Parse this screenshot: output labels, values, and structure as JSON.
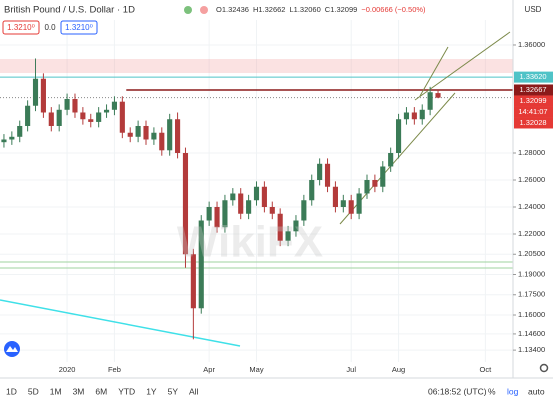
{
  "header": {
    "symbol": "British Pound / U.S. Dollar · 1D",
    "ohlc": [
      "O1.32436",
      "H1.32662",
      "L1.32060",
      "C1.32099",
      "−0.00666 (−0.50%)"
    ],
    "sell": "1.3210⁰",
    "spread": "0.0",
    "buy": "1.3210⁰"
  },
  "chart_data": {
    "type": "candlestick",
    "currency": "USD",
    "watermark": "WikiFX",
    "up_color": "#3b7b57",
    "down_color": "#b33b3b",
    "grid": true,
    "open": [
      1.288,
      1.29,
      1.292,
      1.3,
      1.315,
      1.335,
      1.31,
      1.3,
      1.312,
      1.32,
      1.31,
      1.305,
      1.303,
      1.31,
      1.312,
      1.318,
      1.295,
      1.292,
      1.3,
      1.29,
      1.295,
      1.282,
      1.305,
      1.28,
      1.205,
      1.165,
      1.23,
      1.24,
      1.225,
      1.245,
      1.25,
      1.235,
      1.245,
      1.255,
      1.24,
      1.235,
      1.215,
      1.222,
      1.23,
      1.245,
      1.26,
      1.272,
      1.255,
      1.24,
      1.245,
      1.235,
      1.25,
      1.26,
      1.255,
      1.27,
      1.28,
      1.305,
      1.31,
      1.305,
      1.312,
      1.32436
    ],
    "high": [
      1.294,
      1.296,
      1.304,
      1.319,
      1.35,
      1.339,
      1.314,
      1.316,
      1.324,
      1.324,
      1.314,
      1.309,
      1.314,
      1.316,
      1.322,
      1.322,
      1.299,
      1.304,
      1.304,
      1.299,
      1.299,
      1.309,
      1.31,
      1.284,
      1.209,
      1.234,
      1.244,
      1.244,
      1.249,
      1.254,
      1.254,
      1.249,
      1.259,
      1.259,
      1.244,
      1.239,
      1.226,
      1.234,
      1.249,
      1.264,
      1.276,
      1.276,
      1.259,
      1.249,
      1.249,
      1.254,
      1.264,
      1.264,
      1.274,
      1.284,
      1.309,
      1.314,
      1.314,
      1.316,
      1.329,
      1.32662
    ],
    "low": [
      1.284,
      1.286,
      1.288,
      1.296,
      1.311,
      1.306,
      1.296,
      1.296,
      1.308,
      1.306,
      1.301,
      1.299,
      1.299,
      1.306,
      1.308,
      1.291,
      1.288,
      1.288,
      1.286,
      1.286,
      1.278,
      1.278,
      1.276,
      1.195,
      1.142,
      1.161,
      1.226,
      1.221,
      1.221,
      1.241,
      1.231,
      1.231,
      1.241,
      1.236,
      1.231,
      1.211,
      1.211,
      1.218,
      1.226,
      1.241,
      1.256,
      1.251,
      1.236,
      1.236,
      1.231,
      1.231,
      1.246,
      1.251,
      1.251,
      1.266,
      1.276,
      1.301,
      1.301,
      1.301,
      1.308,
      1.3206
    ],
    "close": [
      1.29,
      1.292,
      1.3,
      1.315,
      1.335,
      1.31,
      1.3,
      1.312,
      1.32,
      1.31,
      1.305,
      1.303,
      1.31,
      1.312,
      1.318,
      1.295,
      1.292,
      1.3,
      1.29,
      1.295,
      1.282,
      1.305,
      1.28,
      1.205,
      1.165,
      1.23,
      1.24,
      1.225,
      1.245,
      1.25,
      1.235,
      1.245,
      1.255,
      1.24,
      1.235,
      1.215,
      1.222,
      1.23,
      1.245,
      1.26,
      1.272,
      1.255,
      1.24,
      1.245,
      1.235,
      1.25,
      1.26,
      1.255,
      1.27,
      1.28,
      1.305,
      1.31,
      1.305,
      1.312,
      1.325,
      1.32099
    ],
    "xlim": [
      -0.5,
      64.5
    ],
    "xticks": [
      {
        "value": 8,
        "label": "2020"
      },
      {
        "value": 14,
        "label": "Feb"
      },
      {
        "value": 26,
        "label": "Apr"
      },
      {
        "value": 32,
        "label": "May"
      },
      {
        "value": 44,
        "label": "Jul"
      },
      {
        "value": 50,
        "label": "Aug"
      },
      {
        "value": 61,
        "label": "Oct"
      }
    ],
    "ylim": [
      1.1252,
      1.3785
    ],
    "yticks": [
      {
        "value": 1.36,
        "label": "1.36000"
      },
      {
        "value": 1.28,
        "label": "1.28000"
      },
      {
        "value": 1.26,
        "label": "1.26000"
      },
      {
        "value": 1.24,
        "label": "1.24000"
      },
      {
        "value": 1.22,
        "label": "1.22000"
      },
      {
        "value": 1.205,
        "label": "1.20500"
      },
      {
        "value": 1.19,
        "label": "1.19000"
      },
      {
        "value": 1.175,
        "label": "1.17500"
      },
      {
        "value": 1.16,
        "label": "1.16000"
      },
      {
        "value": 1.146,
        "label": "1.14600"
      },
      {
        "value": 1.134,
        "label": "1.13400"
      }
    ],
    "price_tags": [
      {
        "value": 1.3362,
        "label": "1.33620",
        "color": "#4fc3c7"
      },
      {
        "value": 1.32667,
        "label": "1.32667",
        "color": "#8b1a1a"
      },
      {
        "value": 1.32099,
        "label": "1.32099",
        "color": "#e53935"
      },
      {
        "value": 1.32028,
        "label": "1.32028",
        "color": "#e53935"
      }
    ],
    "countdown": "14:41:07"
  },
  "footer": {
    "ranges": [
      "1D",
      "5D",
      "1M",
      "3M",
      "6M",
      "YTD",
      "1Y",
      "5Y",
      "All"
    ],
    "clock": "06:18:52 (UTC)",
    "options": [
      "%",
      "log",
      "auto"
    ]
  }
}
